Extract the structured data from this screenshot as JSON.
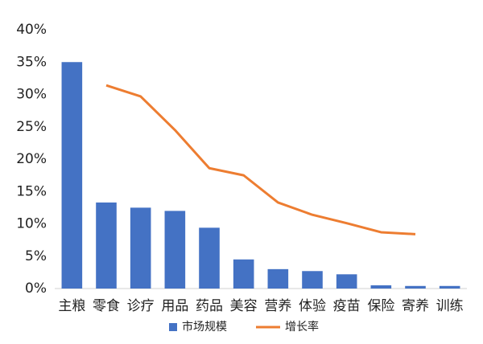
{
  "chart_data": {
    "type": "bar_line",
    "categories": [
      "主粮",
      "零食",
      "诊疗",
      "用品",
      "药品",
      "美容",
      "营养",
      "体验",
      "疫苗",
      "保险",
      "寄养",
      "训练"
    ],
    "series": [
      {
        "name": "市场规模",
        "type": "bar",
        "color": "#4472c4",
        "values": [
          35.0,
          13.3,
          12.5,
          12.0,
          9.4,
          4.5,
          3.0,
          2.7,
          2.2,
          0.5,
          0.4,
          0.4
        ]
      },
      {
        "name": "增长率",
        "type": "line",
        "color": "#ed7d31",
        "values": [
          null,
          31.4,
          29.7,
          24.5,
          18.6,
          17.5,
          13.3,
          11.4,
          10.1,
          8.7,
          8.4,
          null
        ]
      }
    ],
    "ylim": [
      0,
      40
    ],
    "yticks": [
      {
        "value": 0,
        "label": "0%"
      },
      {
        "value": 5,
        "label": "5%"
      },
      {
        "value": 10,
        "label": "10%"
      },
      {
        "value": 15,
        "label": "15%"
      },
      {
        "value": 20,
        "label": "20%"
      },
      {
        "value": 25,
        "label": "25%"
      },
      {
        "value": 30,
        "label": "30%"
      },
      {
        "value": 35,
        "label": "35%"
      },
      {
        "value": 40,
        "label": "40%"
      }
    ],
    "legend": "bottom"
  }
}
